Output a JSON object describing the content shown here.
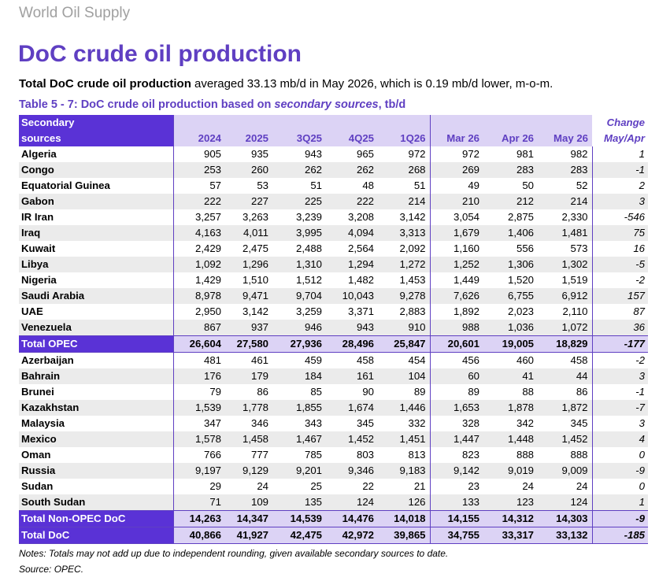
{
  "section_label": "World Oil Supply",
  "page_title": "DoC crude oil production",
  "lead": {
    "bold": "Total DoC crude oil production",
    "rest": " averaged 33.13 mb/d in May 2026, which is 0.19 mb/d lower, m-o-m."
  },
  "table_caption": {
    "prefix": "Table 5 - 7: DoC crude oil production based on ",
    "italic": "secondary sources",
    "suffix": ", tb/d"
  },
  "header": {
    "row_label_line1": "Secondary",
    "row_label_line2": "sources",
    "change_line1": "Change",
    "change_line2": "May/Apr",
    "columns": [
      "2024",
      "2025",
      "3Q25",
      "4Q25",
      "1Q26",
      "Mar 26",
      "Apr 26",
      "May 26"
    ]
  },
  "opec_rows": [
    {
      "name": "Algeria",
      "values": [
        "905",
        "935",
        "943",
        "965",
        "972",
        "972",
        "981",
        "982"
      ],
      "change": "1"
    },
    {
      "name": "Congo",
      "values": [
        "253",
        "260",
        "262",
        "262",
        "268",
        "269",
        "283",
        "283"
      ],
      "change": "-1"
    },
    {
      "name": "Equatorial Guinea",
      "values": [
        "57",
        "53",
        "51",
        "48",
        "51",
        "49",
        "50",
        "52"
      ],
      "change": "2"
    },
    {
      "name": "Gabon",
      "values": [
        "222",
        "227",
        "225",
        "222",
        "214",
        "210",
        "212",
        "214"
      ],
      "change": "3"
    },
    {
      "name": "IR Iran",
      "values": [
        "3,257",
        "3,263",
        "3,239",
        "3,208",
        "3,142",
        "3,054",
        "2,875",
        "2,330"
      ],
      "change": "-546"
    },
    {
      "name": "Iraq",
      "values": [
        "4,163",
        "4,011",
        "3,995",
        "4,094",
        "3,313",
        "1,679",
        "1,406",
        "1,481"
      ],
      "change": "75"
    },
    {
      "name": "Kuwait",
      "values": [
        "2,429",
        "2,475",
        "2,488",
        "2,564",
        "2,092",
        "1,160",
        "556",
        "573"
      ],
      "change": "16"
    },
    {
      "name": "Libya",
      "values": [
        "1,092",
        "1,296",
        "1,310",
        "1,294",
        "1,272",
        "1,252",
        "1,306",
        "1,302"
      ],
      "change": "-5"
    },
    {
      "name": "Nigeria",
      "values": [
        "1,429",
        "1,510",
        "1,512",
        "1,482",
        "1,453",
        "1,449",
        "1,520",
        "1,519"
      ],
      "change": "-2"
    },
    {
      "name": "Saudi Arabia",
      "values": [
        "8,978",
        "9,471",
        "9,704",
        "10,043",
        "9,278",
        "7,626",
        "6,755",
        "6,912"
      ],
      "change": "157"
    },
    {
      "name": "UAE",
      "values": [
        "2,950",
        "3,142",
        "3,259",
        "3,371",
        "2,883",
        "1,892",
        "2,023",
        "2,110"
      ],
      "change": "87"
    },
    {
      "name": "Venezuela",
      "values": [
        "867",
        "937",
        "946",
        "943",
        "910",
        "988",
        "1,036",
        "1,072"
      ],
      "change": "36"
    }
  ],
  "total_opec": {
    "name": "Total  OPEC",
    "values": [
      "26,604",
      "27,580",
      "27,936",
      "28,496",
      "25,847",
      "20,601",
      "19,005",
      "18,829"
    ],
    "change": "-177"
  },
  "non_opec_rows": [
    {
      "name": "Azerbaijan",
      "values": [
        "481",
        "461",
        "459",
        "458",
        "454",
        "456",
        "460",
        "458"
      ],
      "change": "-2"
    },
    {
      "name": "Bahrain",
      "values": [
        "176",
        "179",
        "184",
        "161",
        "104",
        "60",
        "41",
        "44"
      ],
      "change": "3"
    },
    {
      "name": "Brunei",
      "values": [
        "79",
        "86",
        "85",
        "90",
        "89",
        "89",
        "88",
        "86"
      ],
      "change": "-1"
    },
    {
      "name": "Kazakhstan",
      "values": [
        "1,539",
        "1,778",
        "1,855",
        "1,674",
        "1,446",
        "1,653",
        "1,878",
        "1,872"
      ],
      "change": "-7"
    },
    {
      "name": "Malaysia",
      "values": [
        "347",
        "346",
        "343",
        "345",
        "332",
        "328",
        "342",
        "345"
      ],
      "change": "3"
    },
    {
      "name": "Mexico",
      "values": [
        "1,578",
        "1,458",
        "1,467",
        "1,452",
        "1,451",
        "1,447",
        "1,448",
        "1,452"
      ],
      "change": "4"
    },
    {
      "name": "Oman",
      "values": [
        "766",
        "777",
        "785",
        "803",
        "813",
        "823",
        "888",
        "888"
      ],
      "change": "0"
    },
    {
      "name": "Russia",
      "values": [
        "9,197",
        "9,129",
        "9,201",
        "9,346",
        "9,183",
        "9,142",
        "9,019",
        "9,009"
      ],
      "change": "-9"
    },
    {
      "name": "Sudan",
      "values": [
        "29",
        "24",
        "25",
        "22",
        "21",
        "23",
        "24",
        "24"
      ],
      "change": "0"
    },
    {
      "name": "South Sudan",
      "values": [
        "71",
        "109",
        "135",
        "124",
        "126",
        "133",
        "123",
        "124"
      ],
      "change": "1"
    }
  ],
  "total_non_opec": {
    "name": "Total Non-OPEC DoC",
    "values": [
      "14,263",
      "14,347",
      "14,539",
      "14,476",
      "14,018",
      "14,155",
      "14,312",
      "14,303"
    ],
    "change": "-9"
  },
  "total_doc": {
    "name": "Total DoC",
    "values": [
      "40,866",
      "41,927",
      "42,475",
      "42,972",
      "39,865",
      "34,755",
      "33,317",
      "33,132"
    ],
    "change": "-185"
  },
  "notes": {
    "line1": "Notes: Totals may not add up due to independent rounding, given available secondary sources to date.",
    "line2": "Source: OPEC."
  }
}
